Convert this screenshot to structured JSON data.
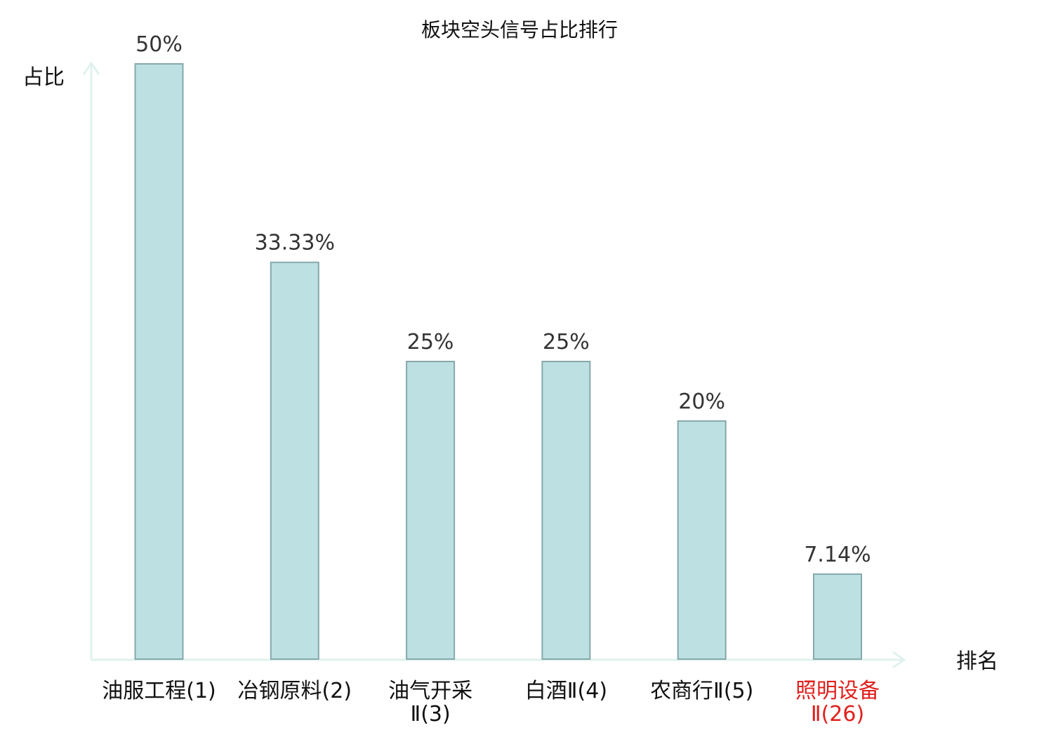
{
  "chart_data": {
    "type": "bar",
    "title": "板块空头信号占比排行",
    "ylabel": "占比",
    "xlabel": "排名",
    "ylim": [
      0,
      50
    ],
    "categories": [
      {
        "lines": [
          "油服工程(1)"
        ],
        "highlight": false
      },
      {
        "lines": [
          "冶钢原料(2)"
        ],
        "highlight": false
      },
      {
        "lines": [
          "油气开采",
          "Ⅱ(3)"
        ],
        "highlight": false
      },
      {
        "lines": [
          "白酒Ⅱ(4)"
        ],
        "highlight": false
      },
      {
        "lines": [
          "农商行Ⅱ(5)"
        ],
        "highlight": false
      },
      {
        "lines": [
          "照明设备",
          "Ⅱ(26)"
        ],
        "highlight": true
      }
    ],
    "values": [
      50,
      33.33,
      25,
      25,
      20,
      7.14
    ],
    "value_labels": [
      "50%",
      "33.33%",
      "25%",
      "25%",
      "20%",
      "7.14%"
    ],
    "grid": false,
    "legend": "none"
  },
  "colors": {
    "bar_fill": "#bde0e3",
    "bar_stroke": "#86a8aa",
    "axis": "#dff2ee",
    "highlight_text": "#e0201c"
  }
}
